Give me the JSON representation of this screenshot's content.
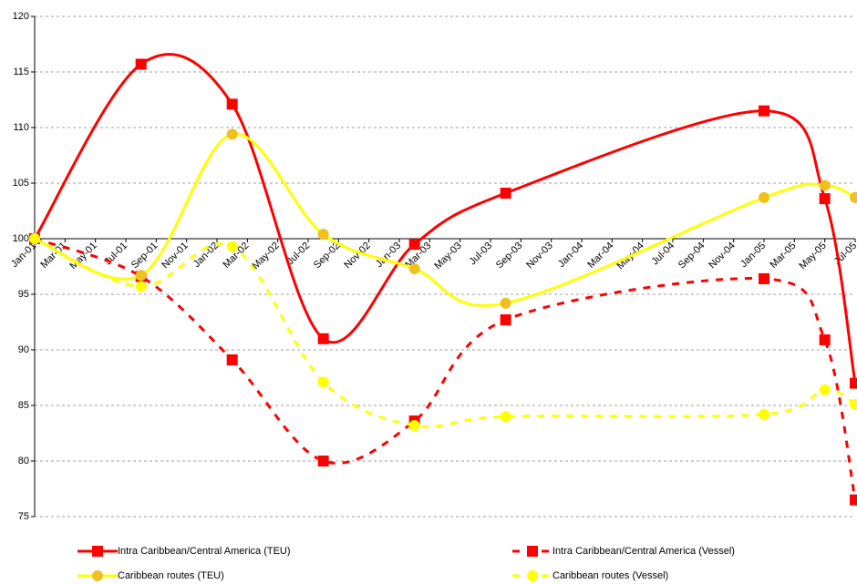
{
  "chart_data": {
    "type": "line",
    "x": [
      0,
      7,
      13,
      19,
      25,
      31,
      48,
      52,
      54
    ],
    "xlim": [
      0,
      54
    ],
    "xticks": [
      {
        "value": 0,
        "label": "Jan-01"
      },
      {
        "value": 2,
        "label": "Mar-01"
      },
      {
        "value": 4,
        "label": "May-01"
      },
      {
        "value": 6,
        "label": "Jul-01"
      },
      {
        "value": 8,
        "label": "Sep-01"
      },
      {
        "value": 10,
        "label": "Nov-01"
      },
      {
        "value": 12,
        "label": "Jan-02"
      },
      {
        "value": 14,
        "label": "Mar-02"
      },
      {
        "value": 16,
        "label": "May-02"
      },
      {
        "value": 18,
        "label": "Jul-02"
      },
      {
        "value": 20,
        "label": "Sep-02"
      },
      {
        "value": 22,
        "label": "Nov-02"
      },
      {
        "value": 24,
        "label": "Jan-03"
      },
      {
        "value": 26,
        "label": "Mar-03"
      },
      {
        "value": 28,
        "label": "May-03"
      },
      {
        "value": 30,
        "label": "Jul-03"
      },
      {
        "value": 32,
        "label": "Sep-03"
      },
      {
        "value": 34,
        "label": "Nov-03"
      },
      {
        "value": 36,
        "label": "Jan-04"
      },
      {
        "value": 38,
        "label": "Mar-04"
      },
      {
        "value": 40,
        "label": "May-04"
      },
      {
        "value": 42,
        "label": "Jul-04"
      },
      {
        "value": 44,
        "label": "Sep-04"
      },
      {
        "value": 46,
        "label": "Nov-04"
      },
      {
        "value": 48,
        "label": "Jan-05"
      },
      {
        "value": 50,
        "label": "Mar-05"
      },
      {
        "value": 52,
        "label": "May-05"
      },
      {
        "value": 54,
        "label": "Jul-05"
      }
    ],
    "ylim": [
      75,
      120
    ],
    "yticks": [
      75,
      80,
      85,
      90,
      95,
      100,
      105,
      110,
      115,
      120
    ],
    "xaxis_at": 100,
    "grid": true,
    "smooth": true,
    "legend": "bottom",
    "series": [
      {
        "name": "Intra Caribbean/Central America (TEU)",
        "color": "#ff0000",
        "dashed": false,
        "marker": "square",
        "marker_color": "#ff0000",
        "values": [
          100,
          115.7,
          112.1,
          91.0,
          99.5,
          104.1,
          111.5,
          103.6,
          87.0
        ]
      },
      {
        "name": "Intra Caribbean/Central America (Vessel)",
        "color": "#ff0000",
        "dashed": true,
        "marker": "square",
        "marker_color": "#ff0000",
        "values": [
          100,
          96.6,
          89.1,
          80.0,
          83.6,
          92.7,
          96.4,
          90.9,
          76.5
        ]
      },
      {
        "name": "Caribbean routes (TEU)",
        "color": "#ffff00",
        "dashed": false,
        "marker": "circle",
        "marker_color": "#f0c020",
        "values": [
          100,
          96.7,
          109.4,
          100.4,
          97.3,
          94.2,
          103.7,
          104.8,
          103.7
        ]
      },
      {
        "name": "Caribbean routes (Vessel)",
        "color": "#ffff00",
        "dashed": true,
        "marker": "circle",
        "marker_color": "#ffff00",
        "values": [
          100,
          95.7,
          99.3,
          87.1,
          83.2,
          84.0,
          84.2,
          86.4,
          85.1
        ]
      }
    ]
  }
}
